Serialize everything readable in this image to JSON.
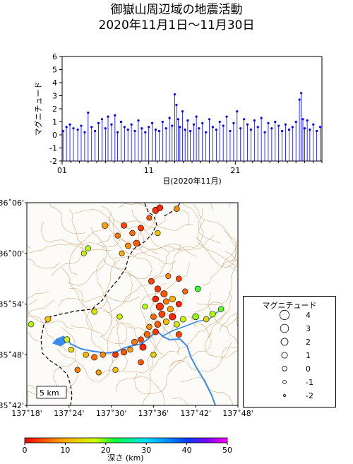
{
  "title": {
    "line1": "御嶽山周辺域の地震活動",
    "line2": "2020年11月1日～11月30日"
  },
  "chart_data": [
    {
      "type": "stem",
      "title": "",
      "ylabel": "マグニチュード",
      "xlabel": "日(2020年11月)",
      "ylim": [
        -2,
        6
      ],
      "yticks": [
        "-2",
        "-1",
        "0",
        "1",
        "2",
        "3",
        "4",
        "5",
        "6"
      ],
      "xtick_labels": [
        "01",
        "11",
        "21"
      ],
      "xtick_days": [
        1,
        11,
        21
      ],
      "xlim_days": [
        1,
        31
      ],
      "color": "#0000ff",
      "events": [
        {
          "day": 1.1,
          "mag": 0.3
        },
        {
          "day": 1.5,
          "mag": 0.6
        },
        {
          "day": 1.9,
          "mag": 0.8
        },
        {
          "day": 2.3,
          "mag": 0.5
        },
        {
          "day": 2.8,
          "mag": 0.4
        },
        {
          "day": 3.2,
          "mag": 0.7
        },
        {
          "day": 3.6,
          "mag": 0.2
        },
        {
          "day": 4.0,
          "mag": 1.7
        },
        {
          "day": 4.4,
          "mag": 0.6
        },
        {
          "day": 4.8,
          "mag": 0.3
        },
        {
          "day": 5.2,
          "mag": 0.9
        },
        {
          "day": 5.6,
          "mag": 1.2
        },
        {
          "day": 6.0,
          "mag": 0.5
        },
        {
          "day": 6.3,
          "mag": 1.4
        },
        {
          "day": 6.7,
          "mag": 0.8
        },
        {
          "day": 7.1,
          "mag": 1.5
        },
        {
          "day": 7.4,
          "mag": 0.2
        },
        {
          "day": 7.8,
          "mag": 1.0
        },
        {
          "day": 8.2,
          "mag": 0.6
        },
        {
          "day": 8.6,
          "mag": 0.4
        },
        {
          "day": 9.0,
          "mag": 0.8
        },
        {
          "day": 9.4,
          "mag": 0.3
        },
        {
          "day": 9.8,
          "mag": 1.1
        },
        {
          "day": 10.2,
          "mag": 0.5
        },
        {
          "day": 10.6,
          "mag": 0.2
        },
        {
          "day": 11.0,
          "mag": 0.6
        },
        {
          "day": 11.4,
          "mag": 0.9
        },
        {
          "day": 11.8,
          "mag": 0.4
        },
        {
          "day": 12.2,
          "mag": 0.3
        },
        {
          "day": 12.6,
          "mag": 1.0
        },
        {
          "day": 13.0,
          "mag": 0.5
        },
        {
          "day": 13.4,
          "mag": 1.3
        },
        {
          "day": 13.7,
          "mag": 0.7
        },
        {
          "day": 14.0,
          "mag": 3.1
        },
        {
          "day": 14.2,
          "mag": 2.3
        },
        {
          "day": 14.4,
          "mag": 1.2
        },
        {
          "day": 14.6,
          "mag": 0.6
        },
        {
          "day": 14.9,
          "mag": 1.8
        },
        {
          "day": 15.2,
          "mag": 0.4
        },
        {
          "day": 15.5,
          "mag": 1.1
        },
        {
          "day": 15.8,
          "mag": 0.3
        },
        {
          "day": 16.2,
          "mag": 0.8
        },
        {
          "day": 16.5,
          "mag": 1.4
        },
        {
          "day": 16.8,
          "mag": 0.5
        },
        {
          "day": 17.2,
          "mag": 0.9
        },
        {
          "day": 17.6,
          "mag": 0.2
        },
        {
          "day": 18.0,
          "mag": 1.2
        },
        {
          "day": 18.4,
          "mag": 0.6
        },
        {
          "day": 18.8,
          "mag": 0.4
        },
        {
          "day": 19.2,
          "mag": 1.0
        },
        {
          "day": 19.6,
          "mag": 0.7
        },
        {
          "day": 20.0,
          "mag": 1.4
        },
        {
          "day": 20.4,
          "mag": 0.3
        },
        {
          "day": 20.8,
          "mag": 0.9
        },
        {
          "day": 21.2,
          "mag": 1.8
        },
        {
          "day": 21.6,
          "mag": 0.5
        },
        {
          "day": 22.0,
          "mag": 1.2
        },
        {
          "day": 22.4,
          "mag": 0.8
        },
        {
          "day": 22.8,
          "mag": 0.4
        },
        {
          "day": 23.2,
          "mag": 1.1
        },
        {
          "day": 23.6,
          "mag": 0.6
        },
        {
          "day": 24.0,
          "mag": 1.3
        },
        {
          "day": 24.4,
          "mag": 0.2
        },
        {
          "day": 24.8,
          "mag": 0.9
        },
        {
          "day": 25.2,
          "mag": 0.5
        },
        {
          "day": 25.6,
          "mag": 1.0
        },
        {
          "day": 26.0,
          "mag": 0.7
        },
        {
          "day": 26.4,
          "mag": 0.3
        },
        {
          "day": 26.8,
          "mag": 0.8
        },
        {
          "day": 27.2,
          "mag": 0.4
        },
        {
          "day": 27.6,
          "mag": 0.6
        },
        {
          "day": 28.0,
          "mag": 1.0
        },
        {
          "day": 28.4,
          "mag": 2.7
        },
        {
          "day": 28.6,
          "mag": 3.2
        },
        {
          "day": 28.8,
          "mag": 1.2
        },
        {
          "day": 29.0,
          "mag": 0.5
        },
        {
          "day": 29.3,
          "mag": 1.1
        },
        {
          "day": 29.6,
          "mag": 0.4
        },
        {
          "day": 30.0,
          "mag": 0.8
        },
        {
          "day": 30.4,
          "mag": 0.3
        },
        {
          "day": 30.8,
          "mag": 0.6
        }
      ]
    },
    {
      "type": "scatter",
      "title": "",
      "lat_labels": [
        "36˚06'",
        "36˚00'",
        "35˚54'",
        "35˚48'",
        "35˚42'"
      ],
      "lon_labels": [
        "137˚18'",
        "137˚24'",
        "137˚30'",
        "137˚36'",
        "137˚42'",
        "137˚48'"
      ],
      "lon_range": [
        137.3,
        137.8
      ],
      "lat_range": [
        35.7,
        36.1
      ],
      "scale_label": "5 km",
      "events": [
        {
          "lon": 137.605,
          "lat": 36.085,
          "depth": 3,
          "mag": 1.5
        },
        {
          "lon": 137.615,
          "lat": 36.09,
          "depth": 2,
          "mag": 1.2
        },
        {
          "lon": 137.655,
          "lat": 36.088,
          "depth": 8,
          "mag": 0.8
        },
        {
          "lon": 137.59,
          "lat": 36.07,
          "depth": 5,
          "mag": 0.5
        },
        {
          "lon": 137.485,
          "lat": 36.055,
          "depth": 9,
          "mag": 1.3
        },
        {
          "lon": 137.53,
          "lat": 36.055,
          "depth": 4,
          "mag": 0.9
        },
        {
          "lon": 137.55,
          "lat": 36.04,
          "depth": 6,
          "mag": 0.7
        },
        {
          "lon": 137.57,
          "lat": 36.05,
          "depth": 3,
          "mag": 1.0
        },
        {
          "lon": 137.515,
          "lat": 36.035,
          "depth": 7,
          "mag": 0.6
        },
        {
          "lon": 137.56,
          "lat": 36.02,
          "depth": 5,
          "mag": 1.4
        },
        {
          "lon": 137.54,
          "lat": 36.015,
          "depth": 8,
          "mag": 0.9
        },
        {
          "lon": 137.525,
          "lat": 36.0,
          "depth": 10,
          "mag": 0.5
        },
        {
          "lon": 137.61,
          "lat": 36.04,
          "depth": 12,
          "mag": 0.6
        },
        {
          "lon": 137.445,
          "lat": 36.01,
          "depth": 18,
          "mag": 0.7
        },
        {
          "lon": 137.435,
          "lat": 36.0,
          "depth": 16,
          "mag": 0.4
        },
        {
          "lon": 137.595,
          "lat": 35.945,
          "depth": 4,
          "mag": 1.0
        },
        {
          "lon": 137.61,
          "lat": 35.93,
          "depth": 3,
          "mag": 1.2
        },
        {
          "lon": 137.625,
          "lat": 35.92,
          "depth": 5,
          "mag": 1.6
        },
        {
          "lon": 137.605,
          "lat": 35.91,
          "depth": 2,
          "mag": 1.3
        },
        {
          "lon": 137.63,
          "lat": 35.905,
          "depth": 7,
          "mag": 0.9
        },
        {
          "lon": 137.615,
          "lat": 35.895,
          "depth": 3,
          "mag": 2.2
        },
        {
          "lon": 137.64,
          "lat": 35.89,
          "depth": 9,
          "mag": 1.1
        },
        {
          "lon": 137.62,
          "lat": 35.88,
          "depth": 4,
          "mag": 1.5
        },
        {
          "lon": 137.6,
          "lat": 35.875,
          "depth": 6,
          "mag": 0.8
        },
        {
          "lon": 137.645,
          "lat": 35.875,
          "depth": 2,
          "mag": 1.7
        },
        {
          "lon": 137.63,
          "lat": 35.865,
          "depth": 11,
          "mag": 1.0
        },
        {
          "lon": 137.61,
          "lat": 35.86,
          "depth": 5,
          "mag": 1.4
        },
        {
          "lon": 137.59,
          "lat": 35.855,
          "depth": 8,
          "mag": 0.7
        },
        {
          "lon": 137.655,
          "lat": 35.86,
          "depth": 15,
          "mag": 0.9
        },
        {
          "lon": 137.605,
          "lat": 35.845,
          "depth": 3,
          "mag": 1.1
        },
        {
          "lon": 137.585,
          "lat": 35.84,
          "depth": 6,
          "mag": 1.3
        },
        {
          "lon": 137.57,
          "lat": 35.83,
          "depth": 4,
          "mag": 0.8
        },
        {
          "lon": 137.555,
          "lat": 35.825,
          "depth": 7,
          "mag": 1.0
        },
        {
          "lon": 137.575,
          "lat": 35.815,
          "depth": 2,
          "mag": 1.6
        },
        {
          "lon": 137.545,
          "lat": 35.81,
          "depth": 9,
          "mag": 0.6
        },
        {
          "lon": 137.53,
          "lat": 35.805,
          "depth": 5,
          "mag": 1.2
        },
        {
          "lon": 137.51,
          "lat": 35.8,
          "depth": 3,
          "mag": 0.9
        },
        {
          "lon": 137.48,
          "lat": 35.8,
          "depth": 8,
          "mag": 0.7
        },
        {
          "lon": 137.46,
          "lat": 35.795,
          "depth": 6,
          "mag": 1.1
        },
        {
          "lon": 137.44,
          "lat": 35.8,
          "depth": 10,
          "mag": 0.8
        },
        {
          "lon": 137.405,
          "lat": 35.81,
          "depth": 14,
          "mag": 0.6
        },
        {
          "lon": 137.395,
          "lat": 35.83,
          "depth": 16,
          "mag": 1.0
        },
        {
          "lon": 137.42,
          "lat": 35.77,
          "depth": 7,
          "mag": 0.7
        },
        {
          "lon": 137.47,
          "lat": 35.765,
          "depth": 9,
          "mag": 0.5
        },
        {
          "lon": 137.51,
          "lat": 35.77,
          "depth": 11,
          "mag": 0.6
        },
        {
          "lon": 137.57,
          "lat": 35.785,
          "depth": 5,
          "mag": 0.8
        },
        {
          "lon": 137.6,
          "lat": 35.8,
          "depth": 13,
          "mag": 0.7
        },
        {
          "lon": 137.66,
          "lat": 35.84,
          "depth": 4,
          "mag": 1.0
        },
        {
          "lon": 137.67,
          "lat": 35.87,
          "depth": 17,
          "mag": 0.9
        },
        {
          "lon": 137.7,
          "lat": 35.875,
          "depth": 19,
          "mag": 1.3
        },
        {
          "lon": 137.725,
          "lat": 35.87,
          "depth": 14,
          "mag": 0.8
        },
        {
          "lon": 137.74,
          "lat": 35.88,
          "depth": 18,
          "mag": 1.1
        },
        {
          "lon": 137.76,
          "lat": 35.89,
          "depth": 20,
          "mag": 0.7
        },
        {
          "lon": 137.705,
          "lat": 35.93,
          "depth": 21,
          "mag": 0.9
        },
        {
          "lon": 137.675,
          "lat": 35.925,
          "depth": 6,
          "mag": 0.6
        },
        {
          "lon": 137.66,
          "lat": 35.95,
          "depth": 4,
          "mag": 0.8
        },
        {
          "lon": 137.635,
          "lat": 35.955,
          "depth": 8,
          "mag": 0.5
        },
        {
          "lon": 137.31,
          "lat": 35.86,
          "depth": 18,
          "mag": 0.7
        },
        {
          "lon": 137.35,
          "lat": 35.87,
          "depth": 12,
          "mag": 1.0
        },
        {
          "lon": 137.46,
          "lat": 35.885,
          "depth": 15,
          "mag": 0.8
        },
        {
          "lon": 137.52,
          "lat": 35.875,
          "depth": 16,
          "mag": 0.6
        },
        {
          "lon": 137.58,
          "lat": 35.895,
          "depth": 18,
          "mag": 0.5
        },
        {
          "lon": 137.645,
          "lat": 35.91,
          "depth": 10,
          "mag": 1.2
        },
        {
          "lon": 137.66,
          "lat": 35.9,
          "depth": 2,
          "mag": 0.9
        }
      ]
    },
    {
      "type": "colorbar",
      "label": "深さ (km)",
      "ticks": [
        "0",
        "10",
        "20",
        "30",
        "40",
        "50"
      ],
      "range": [
        0,
        50
      ]
    }
  ],
  "legend": {
    "title": "マグニチュード",
    "items": [
      {
        "label": "4",
        "mag": 4
      },
      {
        "label": "3",
        "mag": 3
      },
      {
        "label": "2",
        "mag": 2
      },
      {
        "label": "1",
        "mag": 1
      },
      {
        "label": "0",
        "mag": 0
      },
      {
        "label": "-1",
        "mag": -1
      },
      {
        "label": "-2",
        "mag": -2
      }
    ]
  }
}
